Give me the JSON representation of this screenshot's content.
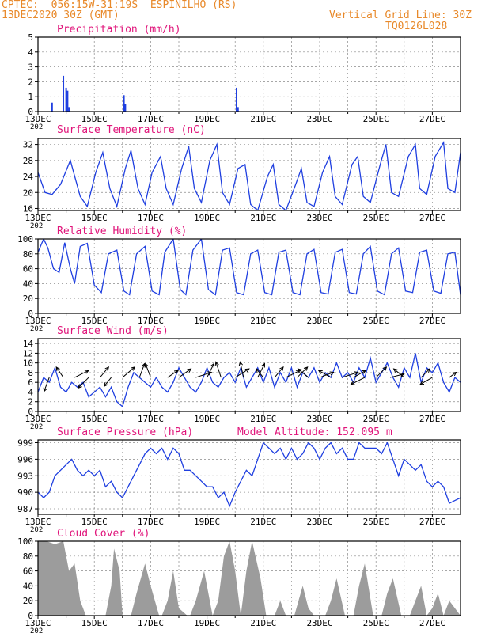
{
  "header": {
    "source": "CPTEC:",
    "location": "056:15W-31:19S  ESPINILHO (RS)",
    "run_time": "13DEC2020 30Z (GMT)",
    "grid_note": "Vertical Grid Line: 30Z",
    "code": "TQ0126L028"
  },
  "x_axis": {
    "tick_labels": [
      "13DEC",
      "15DEC",
      "17DEC",
      "19DEC",
      "21DEC",
      "23DEC",
      "25DEC",
      "27DEC"
    ],
    "year_stub": "202"
  },
  "colors": {
    "header": "#e8892a",
    "title": "#e0147a",
    "line": "#1f3fe0",
    "cloud": "#9c9c9c",
    "arrow": "#000000"
  },
  "panels": {
    "precip": {
      "title": "Precipitation (mm/h)"
    },
    "temp": {
      "title": "Surface Temperature (nC)"
    },
    "rh": {
      "title": "Relative Humidity (%)"
    },
    "wind": {
      "title": "Surface Wind (m/s)"
    },
    "pres": {
      "title": "Surface Pressure (hPa)",
      "note": "Model Altitude: 152.095 m"
    },
    "cloud": {
      "title": "Cloud Cover (%)"
    }
  },
  "chart_data": [
    {
      "type": "bar",
      "id": "precip",
      "title": "Precipitation (mm/h)",
      "ylim": [
        0,
        5
      ],
      "yticks": [
        0,
        1,
        2,
        3,
        4,
        5
      ],
      "grid": true,
      "x_days": [
        0.5,
        0.9,
        1.0,
        1.05,
        1.1,
        3.05,
        3.1,
        7.05,
        7.1
      ],
      "values": [
        0.6,
        2.4,
        1.6,
        1.4,
        0.3,
        1.1,
        0.5,
        1.6,
        0.3
      ]
    },
    {
      "type": "line",
      "id": "temp",
      "title": "Surface Temperature (nC)",
      "ylim": [
        15.5,
        33.5
      ],
      "yticks": [
        16,
        20,
        24,
        28,
        32
      ],
      "grid": true,
      "x_days": [
        0,
        0.25,
        0.5,
        0.8,
        1.15,
        1.5,
        1.75,
        2.05,
        2.3,
        2.55,
        2.8,
        3.1,
        3.3,
        3.55,
        3.8,
        4.05,
        4.35,
        4.55,
        4.8,
        5.1,
        5.35,
        5.55,
        5.8,
        6.1,
        6.35,
        6.55,
        6.8,
        7.1,
        7.35,
        7.55,
        7.8,
        8.15,
        8.35,
        8.55,
        8.8,
        9.15,
        9.35,
        9.55,
        9.8,
        10.1,
        10.35,
        10.55,
        10.8,
        11.15,
        11.35,
        11.55,
        11.8,
        12.15,
        12.35,
        12.55,
        12.8,
        13.15,
        13.4,
        13.55,
        13.8,
        14.1,
        14.4,
        14.55,
        14.8,
        15.0
      ],
      "values": [
        25,
        20,
        19.5,
        22,
        28,
        19,
        16.5,
        25,
        30,
        21,
        16.5,
        26,
        30.5,
        21,
        17,
        25,
        29,
        21,
        17,
        26,
        31.5,
        21,
        17.5,
        28,
        32,
        20,
        17,
        26,
        27,
        17,
        15.5,
        24,
        27,
        17,
        15.5,
        22,
        26,
        17.5,
        16.5,
        25,
        29,
        19,
        17,
        27,
        29,
        19,
        17.5,
        27,
        32,
        20,
        19,
        29,
        32,
        21,
        19.5,
        29,
        32.5,
        21,
        20,
        30
      ]
    },
    {
      "type": "line",
      "id": "rh",
      "title": "Relative Humidity (%)",
      "ylim": [
        0,
        100
      ],
      "yticks": [
        0,
        20,
        40,
        60,
        80,
        100
      ],
      "grid": true,
      "x_days": [
        0,
        0.2,
        0.35,
        0.55,
        0.75,
        0.95,
        1.15,
        1.3,
        1.5,
        1.75,
        2.0,
        2.25,
        2.5,
        2.8,
        3.05,
        3.25,
        3.5,
        3.8,
        4.05,
        4.3,
        4.5,
        4.8,
        5.05,
        5.25,
        5.5,
        5.8,
        6.05,
        6.3,
        6.55,
        6.8,
        7.05,
        7.3,
        7.55,
        7.8,
        8.05,
        8.3,
        8.55,
        8.8,
        9.05,
        9.3,
        9.55,
        9.8,
        10.05,
        10.3,
        10.55,
        10.8,
        11.05,
        11.3,
        11.55,
        11.8,
        12.05,
        12.3,
        12.55,
        12.8,
        13.05,
        13.3,
        13.55,
        13.8,
        14.05,
        14.3,
        14.55,
        14.8,
        15.0
      ],
      "values": [
        82,
        100,
        88,
        60,
        55,
        95,
        60,
        40,
        90,
        94,
        38,
        28,
        80,
        85,
        30,
        25,
        80,
        90,
        30,
        25,
        82,
        100,
        32,
        25,
        85,
        100,
        32,
        25,
        85,
        88,
        28,
        25,
        80,
        85,
        28,
        25,
        82,
        85,
        28,
        25,
        80,
        86,
        28,
        26,
        82,
        86,
        28,
        26,
        80,
        90,
        30,
        25,
        80,
        88,
        30,
        28,
        82,
        85,
        30,
        27,
        80,
        82,
        25
      ]
    },
    {
      "type": "line",
      "id": "wind",
      "title": "Surface Wind (m/s)",
      "ylim": [
        0,
        15
      ],
      "yticks": [
        0,
        2,
        4,
        6,
        8,
        10,
        12,
        14
      ],
      "grid": true,
      "x_days": [
        0,
        0.2,
        0.4,
        0.6,
        0.8,
        1.0,
        1.2,
        1.4,
        1.6,
        1.8,
        2.0,
        2.2,
        2.4,
        2.6,
        2.8,
        3.0,
        3.2,
        3.4,
        3.6,
        3.8,
        4.0,
        4.2,
        4.4,
        4.6,
        4.8,
        5.0,
        5.2,
        5.4,
        5.6,
        5.8,
        6.0,
        6.2,
        6.4,
        6.6,
        6.8,
        7.0,
        7.2,
        7.4,
        7.6,
        7.8,
        8.0,
        8.2,
        8.4,
        8.6,
        8.8,
        9.0,
        9.2,
        9.4,
        9.6,
        9.8,
        10.0,
        10.2,
        10.4,
        10.6,
        10.8,
        11.0,
        11.2,
        11.4,
        11.6,
        11.8,
        12.0,
        12.2,
        12.4,
        12.6,
        12.8,
        13.0,
        13.2,
        13.4,
        13.6,
        13.8,
        14.0,
        14.2,
        14.4,
        14.6,
        14.8,
        15.0
      ],
      "values": [
        4,
        7,
        6,
        9,
        5,
        4,
        6,
        5,
        6,
        3,
        4,
        5,
        3,
        5,
        2,
        1,
        5,
        8,
        7,
        6,
        5,
        7,
        5,
        4,
        6,
        9,
        7,
        5,
        4,
        6,
        9,
        6,
        5,
        7,
        8,
        6,
        9,
        5,
        7,
        9,
        6,
        9,
        5,
        8,
        6,
        9,
        5,
        8,
        7,
        9,
        6,
        8,
        7,
        10,
        7,
        8,
        6,
        9,
        7,
        11,
        6,
        8,
        10,
        7,
        5,
        9,
        7,
        12,
        6,
        9,
        8,
        10,
        6,
        4,
        7,
        6
      ],
      "arrows": {
        "x_days": [
          0.4,
          0.9,
          1.3,
          1.8,
          2.2,
          2.6,
          3.0,
          3.6,
          4.0,
          4.6,
          5.0,
          5.6,
          6.0,
          6.5,
          7.0,
          7.3,
          7.8,
          8.0,
          8.4,
          8.8,
          9.2,
          9.6,
          10.0,
          10.4,
          10.8,
          11.2,
          11.6,
          12.0,
          12.5,
          13.0,
          13.6,
          14.0,
          14.6
        ],
        "u": [
          -0.3,
          -0.4,
          0.8,
          -0.6,
          0.5,
          -0.4,
          0.7,
          0.3,
          -0.3,
          0.6,
          0.7,
          0.9,
          0.4,
          -0.3,
          0.8,
          -0.2,
          0.4,
          -0.4,
          0.5,
          0.8,
          0.6,
          -0.6,
          0.8,
          -0.7,
          0.9,
          0.7,
          -0.8,
          0.6,
          0.8,
          -0.6,
          0.5,
          -0.7,
          0.4
        ],
        "v": [
          -0.8,
          0.6,
          0.4,
          -0.6,
          0.6,
          -0.5,
          0.6,
          0.8,
          0.8,
          0.4,
          0.5,
          0.3,
          0.8,
          0.9,
          0.5,
          0.9,
          0.8,
          0.5,
          0.6,
          0.4,
          0.6,
          0.5,
          0.3,
          0.4,
          0.3,
          0.4,
          -0.4,
          0.6,
          0.2,
          0.5,
          0.5,
          -0.4,
          0.3
        ]
      }
    },
    {
      "type": "line",
      "id": "pres",
      "title": "Surface Pressure (hPa)",
      "ylim": [
        986,
        999.5
      ],
      "yticks": [
        987,
        990,
        993,
        996,
        999
      ],
      "grid": true,
      "x_days": [
        0,
        0.2,
        0.4,
        0.6,
        0.8,
        1.0,
        1.2,
        1.4,
        1.6,
        1.8,
        2.0,
        2.2,
        2.4,
        2.6,
        2.8,
        3.0,
        3.2,
        3.4,
        3.6,
        3.8,
        4.0,
        4.2,
        4.4,
        4.6,
        4.8,
        5.0,
        5.2,
        5.4,
        5.6,
        5.8,
        6.0,
        6.2,
        6.4,
        6.6,
        6.8,
        7.0,
        7.2,
        7.4,
        7.6,
        7.8,
        8.0,
        8.2,
        8.4,
        8.6,
        8.8,
        9.0,
        9.2,
        9.4,
        9.6,
        9.8,
        10.0,
        10.2,
        10.4,
        10.6,
        10.8,
        11.0,
        11.2,
        11.4,
        11.6,
        11.8,
        12.0,
        12.2,
        12.4,
        12.6,
        12.8,
        13.0,
        13.2,
        13.4,
        13.6,
        13.8,
        14.0,
        14.2,
        14.4,
        14.6,
        14.8,
        15.0
      ],
      "values": [
        990,
        989,
        990,
        993,
        994,
        995,
        996,
        994,
        993,
        994,
        993,
        994,
        991,
        992,
        990,
        989,
        991,
        993,
        995,
        997,
        998,
        997,
        998,
        996,
        998,
        997,
        994,
        994,
        993,
        992,
        991,
        991,
        989,
        990,
        987.5,
        990,
        992,
        994,
        993,
        996,
        999,
        998,
        997,
        998,
        996,
        998,
        996,
        997,
        999,
        998,
        996,
        998,
        999,
        997,
        998,
        996,
        996,
        999,
        998,
        998,
        998,
        997,
        999,
        996,
        993,
        996,
        995,
        994,
        995,
        992,
        991,
        992,
        991,
        988,
        988.5,
        989
      ]
    },
    {
      "type": "area",
      "id": "cloud",
      "title": "Cloud Cover (%)",
      "ylim": [
        0,
        100
      ],
      "yticks": [
        0,
        20,
        40,
        60,
        80,
        100
      ],
      "grid": true,
      "x_days": [
        0,
        0.3,
        0.6,
        0.9,
        1.0,
        1.1,
        1.3,
        1.5,
        1.7,
        2.0,
        2.4,
        2.6,
        2.7,
        2.9,
        3.0,
        3.3,
        3.5,
        3.8,
        4.0,
        4.3,
        4.4,
        4.6,
        4.8,
        5.0,
        5.3,
        5.4,
        5.6,
        5.9,
        6.2,
        6.4,
        6.6,
        6.8,
        7.0,
        7.2,
        7.4,
        7.6,
        7.9,
        8.1,
        8.4,
        8.6,
        8.8,
        9.1,
        9.4,
        9.6,
        9.8,
        10.2,
        10.4,
        10.6,
        10.9,
        11.2,
        11.4,
        11.6,
        11.9,
        12.2,
        12.4,
        12.6,
        12.9,
        13.2,
        13.4,
        13.6,
        13.8,
        14.0,
        14.2,
        14.4,
        14.6,
        14.8,
        15.0
      ],
      "values": [
        100,
        100,
        96,
        100,
        80,
        60,
        70,
        20,
        0,
        0,
        0,
        40,
        90,
        60,
        0,
        0,
        30,
        70,
        40,
        0,
        0,
        20,
        60,
        10,
        0,
        0,
        20,
        60,
        0,
        20,
        80,
        100,
        60,
        0,
        60,
        100,
        50,
        0,
        0,
        20,
        0,
        0,
        40,
        10,
        0,
        0,
        20,
        50,
        0,
        0,
        40,
        70,
        0,
        0,
        30,
        50,
        0,
        0,
        20,
        40,
        0,
        10,
        30,
        0,
        20,
        10,
        0
      ]
    }
  ]
}
